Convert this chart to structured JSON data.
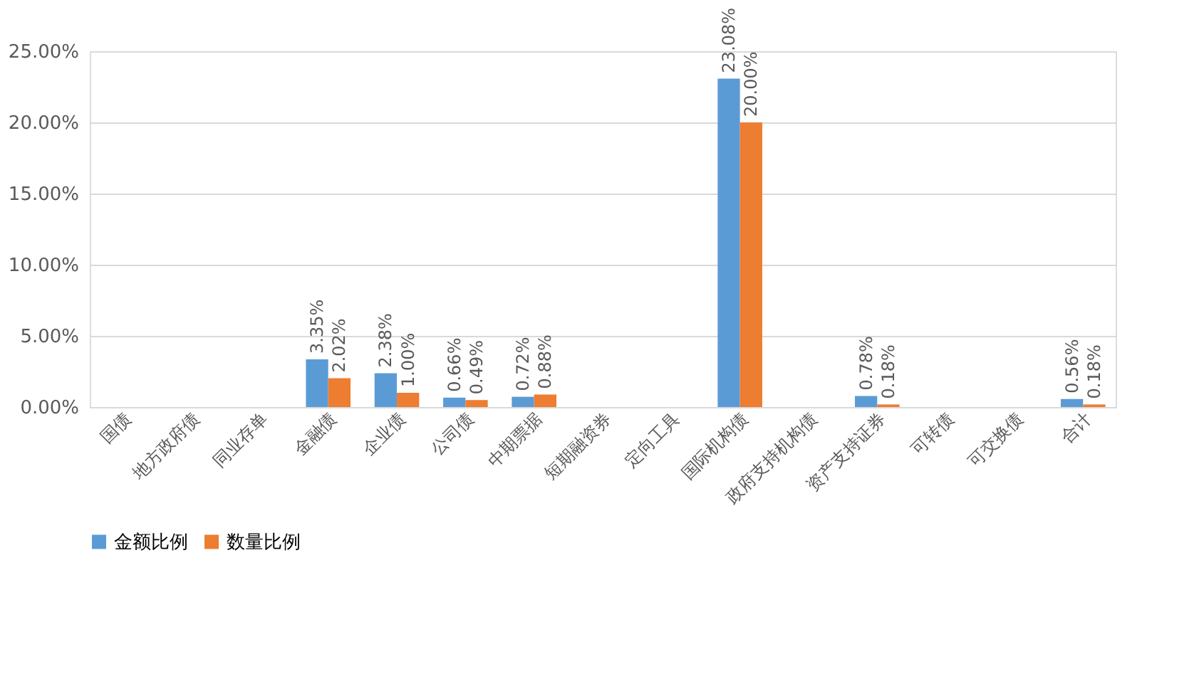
{
  "chart_data": {
    "type": "bar",
    "categories": [
      "国债",
      "地方政府债",
      "同业存单",
      "金融债",
      "企业债",
      "公司债",
      "中期票据",
      "短期融资券",
      "定向工具",
      "国际机构债",
      "政府支持机构债",
      "资产支持证券",
      "可转债",
      "可交换债",
      "合计"
    ],
    "series": [
      {
        "name": "金额比例",
        "color": "#5b9bd5",
        "values": [
          null,
          null,
          null,
          3.35,
          2.38,
          0.66,
          0.72,
          null,
          null,
          23.08,
          null,
          0.78,
          null,
          null,
          0.56
        ],
        "value_labels": [
          null,
          null,
          null,
          "3.35%",
          "2.38%",
          "0.66%",
          "0.72%",
          null,
          null,
          "23.08%",
          null,
          "0.78%",
          null,
          null,
          "0.56%"
        ]
      },
      {
        "name": "数量比例",
        "color": "#ed7d31",
        "values": [
          null,
          null,
          null,
          2.02,
          1.0,
          0.49,
          0.88,
          null,
          null,
          20.0,
          null,
          0.18,
          null,
          null,
          0.18
        ],
        "value_labels": [
          null,
          null,
          null,
          "2.02%",
          "1.00%",
          "0.49%",
          "0.88%",
          null,
          null,
          "20.00%",
          null,
          "0.18%",
          null,
          null,
          "0.18%"
        ]
      }
    ],
    "ylim": [
      0,
      25
    ],
    "yticks": [
      {
        "value": 0,
        "label": "0.00%"
      },
      {
        "value": 5,
        "label": "5.00%"
      },
      {
        "value": 10,
        "label": "10.00%"
      },
      {
        "value": 15,
        "label": "15.00%"
      },
      {
        "value": 20,
        "label": "20.00%"
      },
      {
        "value": 25,
        "label": "25.00%"
      }
    ],
    "grid": "y",
    "legend": "bottom"
  }
}
